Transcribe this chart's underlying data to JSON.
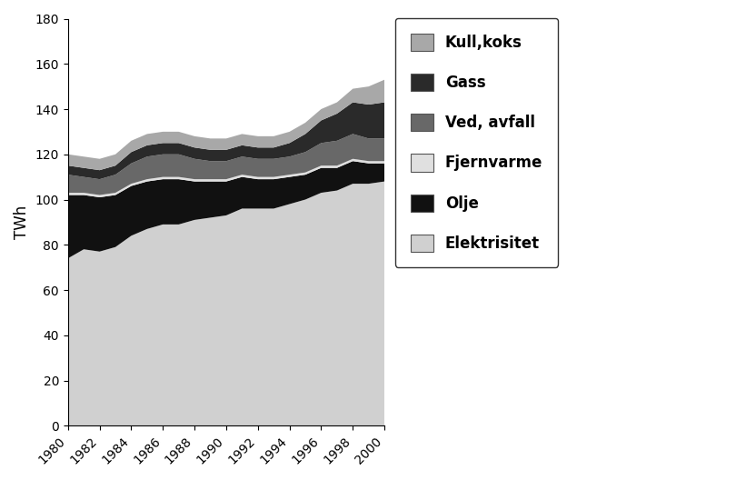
{
  "years": [
    1980,
    1981,
    1982,
    1983,
    1984,
    1985,
    1986,
    1987,
    1988,
    1989,
    1990,
    1991,
    1992,
    1993,
    1994,
    1995,
    1996,
    1997,
    1998,
    1999,
    2000
  ],
  "elektrisitet": [
    74,
    78,
    77,
    79,
    84,
    87,
    89,
    89,
    91,
    92,
    93,
    96,
    96,
    96,
    98,
    100,
    103,
    104,
    107,
    107,
    108
  ],
  "olje": [
    28,
    24,
    24,
    23,
    22,
    21,
    20,
    20,
    17,
    16,
    15,
    14,
    13,
    13,
    12,
    11,
    11,
    10,
    10,
    9,
    8
  ],
  "fjernvarme": [
    1,
    1,
    1,
    1,
    1,
    1,
    1,
    1,
    1,
    1,
    1,
    1,
    1,
    1,
    1,
    1,
    1,
    1,
    1,
    1,
    1
  ],
  "ved_avfall": [
    8,
    7,
    7,
    8,
    9,
    10,
    10,
    10,
    9,
    8,
    8,
    8,
    8,
    8,
    8,
    9,
    10,
    11,
    11,
    10,
    10
  ],
  "gass": [
    4,
    4,
    4,
    4,
    5,
    5,
    5,
    5,
    5,
    5,
    5,
    5,
    5,
    5,
    6,
    8,
    10,
    12,
    14,
    15,
    16
  ],
  "kull_koks": [
    5,
    5,
    5,
    5,
    5,
    5,
    5,
    5,
    5,
    5,
    5,
    5,
    5,
    5,
    5,
    5,
    5,
    5,
    6,
    8,
    10
  ],
  "stack_colors": [
    "#d0d0d0",
    "#111111",
    "#e0e0e0",
    "#686868",
    "#2a2a2a",
    "#a8a8a8"
  ],
  "legend_labels": [
    "Kull,koks",
    "Gass",
    "Ved, avfall",
    "Fjernvarme",
    "Olje",
    "Elektrisitet"
  ],
  "legend_colors": [
    "#a8a8a8",
    "#2a2a2a",
    "#686868",
    "#e0e0e0",
    "#111111",
    "#d0d0d0"
  ],
  "ylabel": "TWh",
  "ylim": [
    0,
    180
  ],
  "yticks": [
    0,
    20,
    40,
    60,
    80,
    100,
    120,
    140,
    160,
    180
  ],
  "xtick_start": 1980,
  "xtick_end": 2001,
  "xtick_step": 2,
  "background_color": "#ffffff"
}
